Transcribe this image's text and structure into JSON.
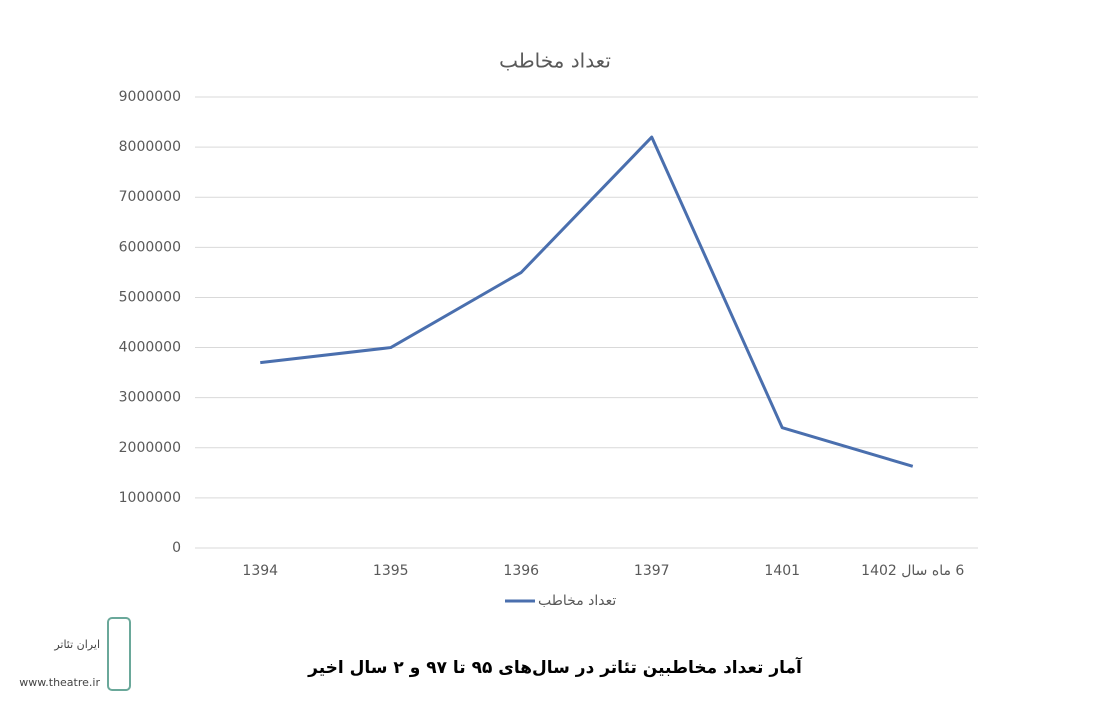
{
  "chart_data": {
    "type": "line",
    "title": "تعداد مخاطب",
    "categories": [
      "1394",
      "1395",
      "1396",
      "1397",
      "1401",
      "6 ماه سال 1402"
    ],
    "series": [
      {
        "name": "تعداد مخاطب",
        "color": "#4a6fae",
        "values": [
          3700000,
          4000000,
          5500000,
          8200000,
          2400000,
          1630000
        ]
      }
    ],
    "ylim": [
      0,
      9000000
    ],
    "yticks": [
      0,
      1000000,
      2000000,
      3000000,
      4000000,
      5000000,
      6000000,
      7000000,
      8000000,
      9000000
    ],
    "grid": true,
    "legend": "bottom"
  },
  "caption": "آمار تعداد مخاطبین تئاتر در سال‌های ۹۵ تا ۹۷ و ۲ سال اخیر",
  "logo": {
    "name": "ایران تئاتر",
    "url": "www.theatre.ir"
  }
}
